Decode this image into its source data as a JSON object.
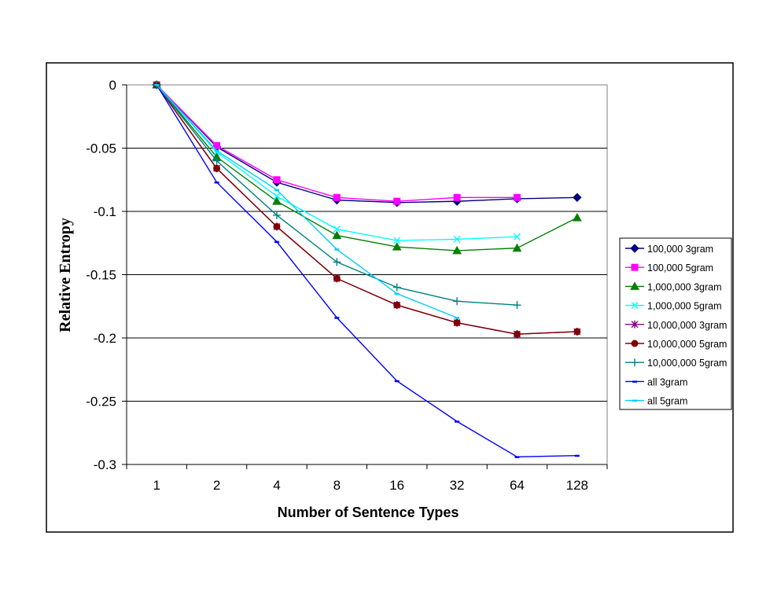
{
  "chart_data": {
    "type": "line",
    "title": "",
    "xlabel": "Number of Sentence Types",
    "ylabel": "Relative Entropy",
    "categories": [
      "1",
      "2",
      "4",
      "8",
      "16",
      "32",
      "64",
      "128"
    ],
    "ylim": [
      -0.3,
      0
    ],
    "yticks": [
      0,
      -0.05,
      -0.1,
      -0.15,
      -0.2,
      -0.25,
      -0.3
    ],
    "ytick_labels": [
      "0",
      "-0.05",
      "-0.1",
      "-0.15",
      "-0.2",
      "-0.25",
      "-0.3"
    ],
    "grid": "horizontal",
    "legend_position": "right",
    "series": [
      {
        "name": "100,000 3gram",
        "color": "#000080",
        "marker": "diamond",
        "values": [
          0,
          -0.049,
          -0.077,
          -0.091,
          -0.093,
          -0.092,
          -0.09,
          -0.089
        ]
      },
      {
        "name": "100,000 5gram",
        "color": "#ff00ff",
        "marker": "square",
        "values": [
          0,
          -0.048,
          -0.075,
          -0.089,
          -0.092,
          -0.089,
          -0.089,
          null
        ]
      },
      {
        "name": "1,000,000 3gram",
        "color": "#008000",
        "marker": "triangle",
        "values": [
          0,
          -0.057,
          -0.092,
          -0.119,
          -0.128,
          -0.131,
          -0.129,
          -0.105
        ]
      },
      {
        "name": "1,000,000 5gram",
        "color": "#00ffff",
        "marker": "x",
        "values": [
          0,
          -0.053,
          -0.088,
          -0.114,
          -0.123,
          -0.122,
          -0.12,
          null
        ]
      },
      {
        "name": "10,000,000 3gram",
        "color": "#800080",
        "marker": "star",
        "values": [
          0,
          -0.066,
          -0.112,
          -0.153,
          -0.174,
          -0.188,
          -0.197,
          -0.195
        ]
      },
      {
        "name": "10,000,000 5gram",
        "color": "#800000",
        "marker": "circle",
        "values": [
          0,
          -0.066,
          -0.112,
          -0.153,
          -0.174,
          -0.188,
          -0.197,
          -0.195
        ]
      },
      {
        "name": "10,000,000 5gram",
        "color": "#008080",
        "marker": "plus",
        "values": [
          0,
          -0.06,
          -0.103,
          -0.14,
          -0.16,
          -0.171,
          -0.174,
          null
        ]
      },
      {
        "name": "all 3gram",
        "color": "#0000ff",
        "marker": "dash",
        "values": [
          0,
          -0.077,
          -0.124,
          -0.184,
          -0.234,
          -0.266,
          -0.294,
          -0.293
        ]
      },
      {
        "name": "all 5gram",
        "color": "#00ccff",
        "marker": "dash",
        "values": [
          0,
          -0.052,
          -0.083,
          -0.13,
          -0.165,
          -0.184,
          null,
          null
        ]
      }
    ]
  }
}
